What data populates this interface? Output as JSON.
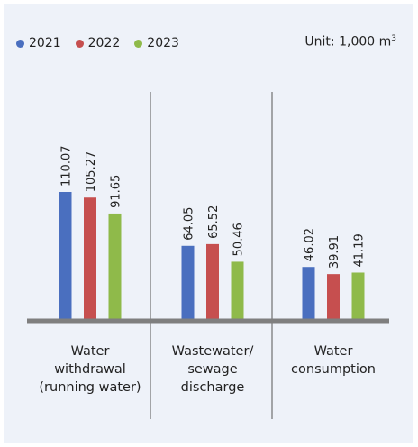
{
  "chart_data": {
    "type": "bar",
    "categories": [
      "Water withdrawal (running water)",
      "Wastewater/ sewage discharge",
      "Water consumption"
    ],
    "category_lines": [
      [
        "Water",
        "withdrawal",
        "(running water)"
      ],
      [
        "Wastewater/",
        "sewage",
        "discharge"
      ],
      [
        "Water",
        "consumption"
      ]
    ],
    "series": [
      {
        "name": "2021",
        "color": "#4a6fbf",
        "values": [
          110.07,
          64.05,
          46.02
        ]
      },
      {
        "name": "2022",
        "color": "#c64f4f",
        "values": [
          105.27,
          65.52,
          39.91
        ]
      },
      {
        "name": "2023",
        "color": "#8fba4a",
        "values": [
          91.65,
          50.46,
          41.19
        ]
      }
    ],
    "value_labels": [
      [
        "110.07",
        "64.05",
        "46.02"
      ],
      [
        "105.27",
        "65.52",
        "39.91"
      ],
      [
        "91.65",
        "50.46",
        "41.19"
      ]
    ],
    "unit": "Unit: 1,000 m",
    "unit_superscript": "3",
    "ylim": [
      0,
      200
    ],
    "grid": false,
    "legend_position": "top-left"
  }
}
